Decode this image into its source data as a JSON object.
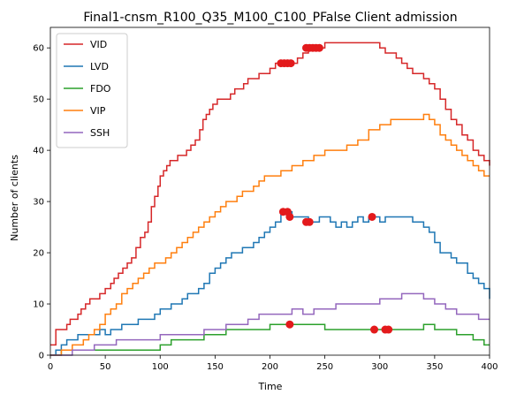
{
  "chart_data": {
    "type": "line",
    "title": "Final1-cnsm_R100_Q35_M100_C100_PFalse Client admission",
    "xlabel": "Time",
    "ylabel": "Number of clients",
    "xlim": [
      0,
      400
    ],
    "ylim": [
      0,
      64
    ],
    "xticks": [
      0,
      50,
      100,
      150,
      200,
      250,
      300,
      350,
      400
    ],
    "yticks": [
      0,
      10,
      20,
      30,
      40,
      50,
      60
    ],
    "grid": false,
    "legend_position": "top-left",
    "series": [
      {
        "name": "VID",
        "color": "#d62728",
        "x": [
          0,
          5,
          10,
          15,
          18,
          20,
          25,
          28,
          32,
          36,
          40,
          45,
          50,
          55,
          58,
          62,
          66,
          70,
          74,
          78,
          82,
          86,
          89,
          92,
          95,
          98,
          100,
          103,
          106,
          109,
          112,
          116,
          120,
          124,
          128,
          132,
          136,
          139,
          142,
          145,
          148,
          152,
          156,
          160,
          164,
          168,
          172,
          176,
          180,
          185,
          190,
          195,
          200,
          205,
          210,
          215,
          220,
          225,
          230,
          235,
          240,
          245,
          250,
          260,
          270,
          280,
          290,
          300,
          305,
          310,
          315,
          320,
          325,
          330,
          335,
          340,
          345,
          350,
          355,
          360,
          365,
          370,
          375,
          380,
          385,
          390,
          395,
          400
        ],
        "y": [
          2,
          5,
          5,
          6,
          7,
          7,
          8,
          9,
          10,
          11,
          11,
          12,
          13,
          14,
          15,
          16,
          17,
          18,
          19,
          21,
          23,
          24,
          26,
          29,
          31,
          33,
          35,
          36,
          37,
          38,
          38,
          39,
          39,
          40,
          41,
          42,
          44,
          46,
          47,
          48,
          49,
          50,
          50,
          50,
          51,
          52,
          52,
          53,
          54,
          54,
          55,
          55,
          56,
          57,
          57,
          57,
          57,
          58,
          59,
          60,
          60,
          60,
          61,
          61,
          61,
          61,
          61,
          60,
          59,
          59,
          58,
          57,
          56,
          55,
          55,
          54,
          53,
          52,
          50,
          48,
          46,
          45,
          43,
          42,
          40,
          39,
          38,
          37
        ]
      },
      {
        "name": "LVD",
        "color": "#1f77b4",
        "x": [
          0,
          5,
          10,
          15,
          20,
          25,
          30,
          40,
          45,
          50,
          55,
          60,
          65,
          70,
          80,
          90,
          95,
          100,
          110,
          120,
          125,
          130,
          135,
          140,
          145,
          150,
          155,
          160,
          165,
          170,
          175,
          180,
          185,
          190,
          195,
          200,
          205,
          210,
          215,
          220,
          225,
          230,
          235,
          240,
          245,
          250,
          255,
          260,
          265,
          270,
          275,
          280,
          285,
          290,
          295,
          300,
          305,
          310,
          315,
          320,
          325,
          330,
          335,
          340,
          345,
          350,
          355,
          360,
          365,
          370,
          375,
          380,
          385,
          390,
          395,
          400
        ],
        "y": [
          0,
          1,
          2,
          3,
          3,
          4,
          4,
          4,
          5,
          4,
          5,
          5,
          6,
          6,
          7,
          7,
          8,
          9,
          10,
          11,
          12,
          12,
          13,
          14,
          16,
          17,
          18,
          19,
          20,
          20,
          21,
          21,
          22,
          23,
          24,
          25,
          26,
          28,
          28,
          27,
          27,
          27,
          26,
          26,
          27,
          27,
          26,
          25,
          26,
          25,
          26,
          27,
          26,
          27,
          27,
          26,
          27,
          27,
          27,
          27,
          27,
          26,
          26,
          25,
          24,
          22,
          20,
          20,
          19,
          18,
          18,
          16,
          15,
          14,
          13,
          11
        ]
      },
      {
        "name": "FDO",
        "color": "#2ca02c",
        "x": [
          0,
          10,
          30,
          60,
          90,
          100,
          110,
          120,
          140,
          160,
          180,
          200,
          220,
          250,
          290,
          320,
          340,
          350,
          370,
          385,
          395,
          400
        ],
        "y": [
          0,
          1,
          1,
          1,
          1,
          2,
          3,
          3,
          4,
          5,
          5,
          6,
          6,
          5,
          5,
          5,
          6,
          5,
          4,
          3,
          2,
          2
        ]
      },
      {
        "name": "VIP",
        "color": "#ff7f0e",
        "x": [
          0,
          10,
          20,
          30,
          35,
          40,
          45,
          50,
          55,
          60,
          65,
          70,
          75,
          80,
          85,
          90,
          95,
          100,
          105,
          110,
          115,
          120,
          125,
          130,
          135,
          140,
          145,
          150,
          155,
          160,
          165,
          170,
          175,
          180,
          185,
          190,
          195,
          200,
          210,
          220,
          230,
          240,
          250,
          260,
          270,
          280,
          290,
          300,
          310,
          320,
          330,
          340,
          345,
          350,
          355,
          360,
          365,
          370,
          375,
          380,
          385,
          390,
          395,
          400
        ],
        "y": [
          0,
          1,
          2,
          3,
          4,
          5,
          6,
          8,
          9,
          10,
          12,
          13,
          14,
          15,
          16,
          17,
          18,
          18,
          19,
          20,
          21,
          22,
          23,
          24,
          25,
          26,
          27,
          28,
          29,
          30,
          30,
          31,
          32,
          32,
          33,
          34,
          35,
          35,
          36,
          37,
          38,
          39,
          40,
          40,
          41,
          42,
          44,
          45,
          46,
          46,
          46,
          47,
          46,
          45,
          43,
          42,
          41,
          40,
          39,
          38,
          37,
          36,
          35,
          35
        ]
      },
      {
        "name": "SSH",
        "color": "#9467bd",
        "x": [
          0,
          10,
          20,
          30,
          40,
          50,
          60,
          80,
          100,
          120,
          140,
          160,
          180,
          190,
          200,
          210,
          220,
          230,
          240,
          260,
          280,
          300,
          310,
          320,
          330,
          340,
          350,
          360,
          370,
          390,
          400
        ],
        "y": [
          0,
          0,
          1,
          1,
          2,
          2,
          3,
          3,
          4,
          4,
          5,
          6,
          7,
          8,
          8,
          8,
          9,
          8,
          9,
          10,
          10,
          11,
          11,
          12,
          12,
          11,
          10,
          9,
          8,
          7,
          7
        ]
      }
    ],
    "markers": {
      "color": "#e31a1c",
      "points": [
        {
          "x": 210,
          "y": 57
        },
        {
          "x": 213,
          "y": 57
        },
        {
          "x": 216,
          "y": 57
        },
        {
          "x": 219,
          "y": 57
        },
        {
          "x": 233,
          "y": 60
        },
        {
          "x": 236,
          "y": 60
        },
        {
          "x": 239,
          "y": 60
        },
        {
          "x": 242,
          "y": 60
        },
        {
          "x": 245,
          "y": 60
        },
        {
          "x": 212,
          "y": 28
        },
        {
          "x": 216,
          "y": 28
        },
        {
          "x": 218,
          "y": 27
        },
        {
          "x": 233,
          "y": 26
        },
        {
          "x": 236,
          "y": 26
        },
        {
          "x": 293,
          "y": 27
        },
        {
          "x": 218,
          "y": 6
        },
        {
          "x": 295,
          "y": 5
        },
        {
          "x": 305,
          "y": 5
        },
        {
          "x": 308,
          "y": 5
        }
      ]
    }
  }
}
